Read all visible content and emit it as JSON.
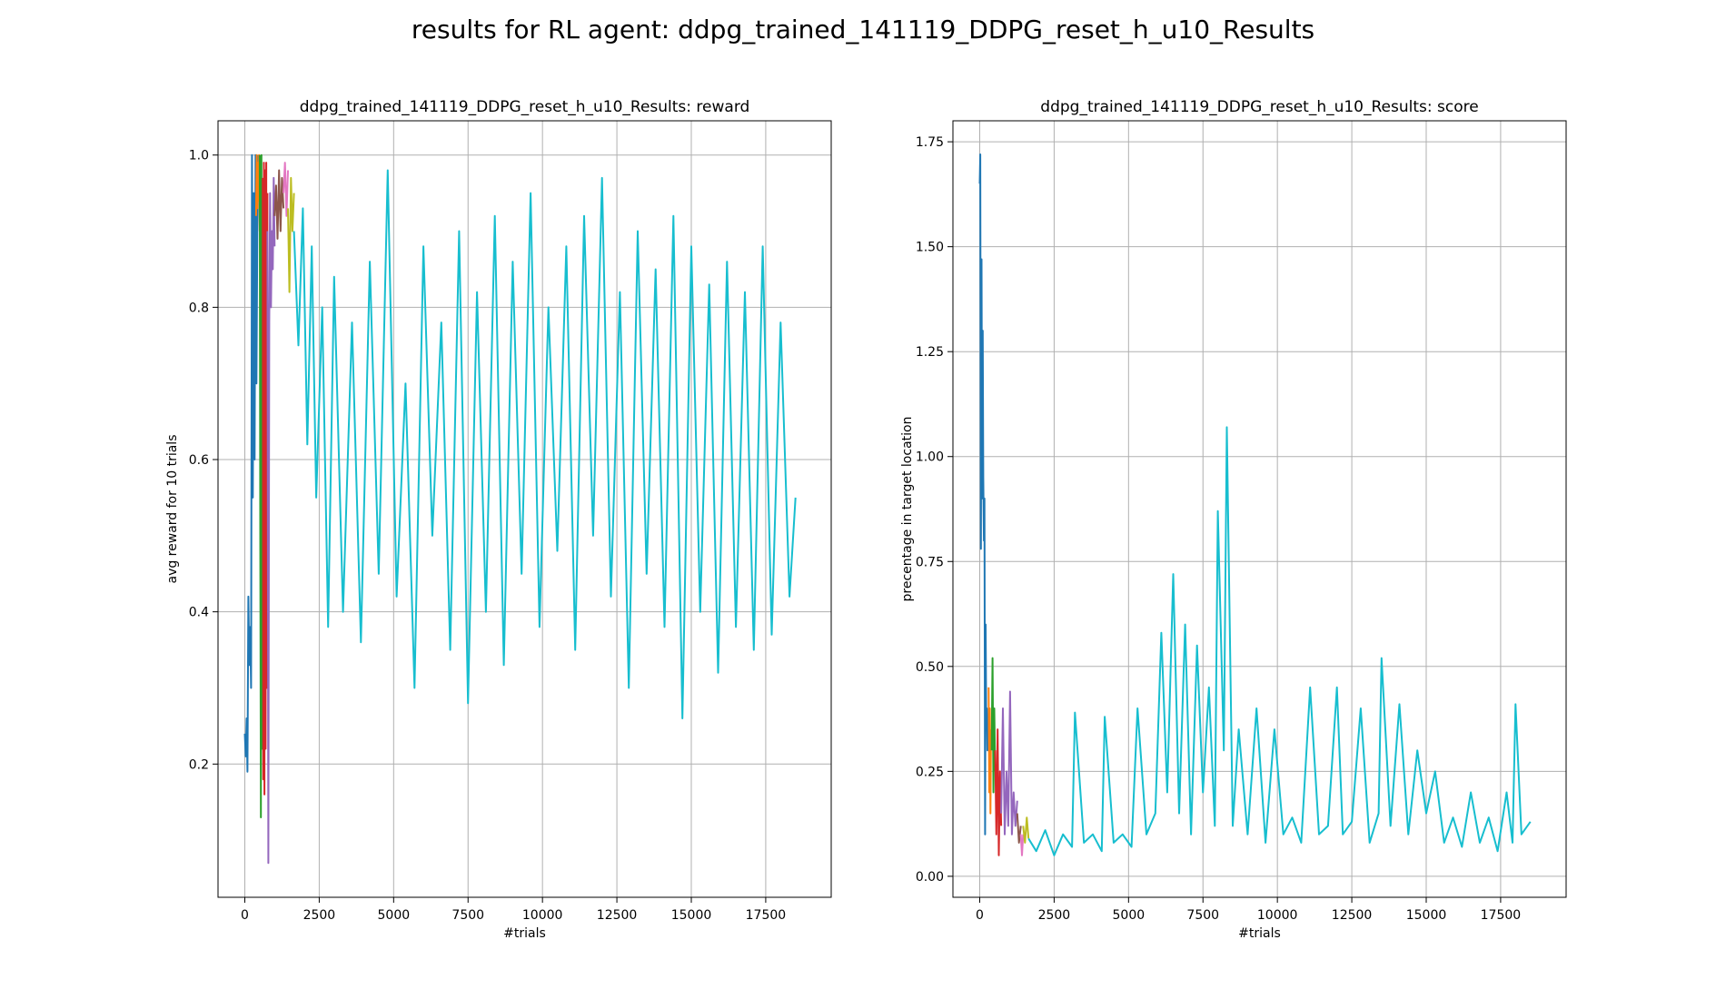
{
  "suptitle": "results for RL agent: ddpg_trained_141119_DDPG_reset_h_u10_Results",
  "chart_data": [
    {
      "type": "line",
      "title": "ddpg_trained_141119_DDPG_reset_h_u10_Results: reward",
      "xlabel": "#trials",
      "ylabel": "avg reward for 10 trials",
      "xlim": [
        -900,
        19700
      ],
      "ylim": [
        0.025,
        1.045
      ],
      "xticks": [
        0,
        2500,
        5000,
        7500,
        10000,
        12500,
        15000,
        17500
      ],
      "xtick_labels": [
        "0",
        "2500",
        "5000",
        "7500",
        "10000",
        "12500",
        "15000",
        "17500"
      ],
      "yticks": [
        0.2,
        0.4,
        0.6,
        0.8,
        1.0
      ],
      "ytick_labels": [
        "0.2",
        "0.4",
        "0.6",
        "0.8",
        "1.0"
      ],
      "grid": true,
      "series": [
        {
          "color": "#1f77b4",
          "x": [
            0,
            30,
            60,
            90,
            120,
            150,
            180,
            210,
            240,
            270,
            300,
            330,
            360,
            390,
            420,
            450
          ],
          "y": [
            0.24,
            0.21,
            0.26,
            0.19,
            0.42,
            0.33,
            0.38,
            0.3,
            1.0,
            0.55,
            0.95,
            0.6,
            1.0,
            0.7,
            0.9,
            1.0
          ]
        },
        {
          "color": "#ff7f0e",
          "x": [
            380,
            400,
            420,
            440,
            460,
            480,
            500,
            520
          ],
          "y": [
            0.92,
            1.0,
            0.93,
            0.99,
            0.94,
            1.0,
            0.9,
            0.97
          ]
        },
        {
          "color": "#2ca02c",
          "x": [
            500,
            520,
            540,
            560,
            580,
            600
          ],
          "y": [
            1.0,
            0.5,
            0.13,
            1.0,
            0.22,
            0.95
          ]
        },
        {
          "color": "#d62728",
          "x": [
            600,
            620,
            640,
            660,
            680,
            700,
            720,
            740,
            760
          ],
          "y": [
            0.97,
            0.18,
            0.99,
            0.16,
            0.98,
            0.22,
            0.99,
            0.3,
            0.95
          ]
        },
        {
          "color": "#9467bd",
          "x": [
            760,
            790,
            820,
            850,
            880,
            910,
            940,
            970,
            1000
          ],
          "y": [
            0.9,
            0.07,
            0.78,
            0.95,
            0.8,
            0.9,
            0.85,
            0.97,
            0.88
          ]
        },
        {
          "color": "#8c564b",
          "x": [
            1000,
            1050,
            1100,
            1150,
            1200,
            1250,
            1300
          ],
          "y": [
            0.92,
            0.96,
            0.89,
            0.98,
            0.9,
            0.97,
            0.93
          ]
        },
        {
          "color": "#e377c2",
          "x": [
            1300,
            1350,
            1400,
            1450
          ],
          "y": [
            0.95,
            0.99,
            0.92,
            0.98
          ]
        },
        {
          "color": "#bcbd22",
          "x": [
            1450,
            1500,
            1550,
            1600,
            1650
          ],
          "y": [
            0.93,
            0.82,
            0.97,
            0.9,
            0.95
          ]
        },
        {
          "color": "#17becf",
          "x": [
            1650,
            1800,
            1950,
            2100,
            2250,
            2400,
            2600,
            2800,
            3000,
            3300,
            3600,
            3900,
            4200,
            4500,
            4800,
            5100,
            5400,
            5700,
            6000,
            6300,
            6600,
            6900,
            7200,
            7500,
            7800,
            8100,
            8400,
            8700,
            9000,
            9300,
            9600,
            9900,
            10200,
            10500,
            10800,
            11100,
            11400,
            11700,
            12000,
            12300,
            12600,
            12900,
            13200,
            13500,
            13800,
            14100,
            14400,
            14700,
            15000,
            15300,
            15600,
            15900,
            16200,
            16500,
            16800,
            17100,
            17400,
            17700,
            18000,
            18300,
            18500
          ],
          "y": [
            0.9,
            0.75,
            0.93,
            0.62,
            0.88,
            0.55,
            0.8,
            0.38,
            0.84,
            0.4,
            0.78,
            0.36,
            0.86,
            0.45,
            0.98,
            0.42,
            0.7,
            0.3,
            0.88,
            0.5,
            0.78,
            0.35,
            0.9,
            0.28,
            0.82,
            0.4,
            0.92,
            0.33,
            0.86,
            0.45,
            0.95,
            0.38,
            0.8,
            0.48,
            0.88,
            0.35,
            0.92,
            0.5,
            0.97,
            0.42,
            0.82,
            0.3,
            0.9,
            0.45,
            0.85,
            0.38,
            0.92,
            0.26,
            0.88,
            0.4,
            0.83,
            0.32,
            0.86,
            0.38,
            0.82,
            0.35,
            0.88,
            0.37,
            0.78,
            0.42,
            0.55
          ]
        }
      ]
    },
    {
      "type": "line",
      "title": "ddpg_trained_141119_DDPG_reset_h_u10_Results: score",
      "xlabel": "#trials",
      "ylabel": "precentage in target location",
      "xlim": [
        -900,
        19700
      ],
      "ylim": [
        -0.05,
        1.8
      ],
      "xticks": [
        0,
        2500,
        5000,
        7500,
        10000,
        12500,
        15000,
        17500
      ],
      "xtick_labels": [
        "0",
        "2500",
        "5000",
        "7500",
        "10000",
        "12500",
        "15000",
        "17500"
      ],
      "yticks": [
        0.0,
        0.25,
        0.5,
        0.75,
        1.0,
        1.25,
        1.5,
        1.75
      ],
      "ytick_labels": [
        "0.00",
        "0.25",
        "0.50",
        "0.75",
        "1.00",
        "1.25",
        "1.50",
        "1.75"
      ],
      "grid": true,
      "series": [
        {
          "color": "#1f77b4",
          "x": [
            0,
            20,
            40,
            60,
            80,
            100,
            120,
            140,
            160,
            180,
            200,
            220,
            240,
            260,
            280
          ],
          "y": [
            1.65,
            1.72,
            0.78,
            1.47,
            0.9,
            1.3,
            0.95,
            0.8,
            0.9,
            0.1,
            0.6,
            0.35,
            0.4,
            0.3,
            0.38
          ]
        },
        {
          "color": "#ff7f0e",
          "x": [
            300,
            320,
            340,
            360,
            380
          ],
          "y": [
            0.45,
            0.2,
            0.4,
            0.15,
            0.35
          ]
        },
        {
          "color": "#2ca02c",
          "x": [
            400,
            430,
            460,
            490,
            520
          ],
          "y": [
            0.3,
            0.52,
            0.2,
            0.4,
            0.25
          ]
        },
        {
          "color": "#d62728",
          "x": [
            520,
            560,
            600,
            640,
            680,
            720
          ],
          "y": [
            0.3,
            0.1,
            0.35,
            0.05,
            0.25,
            0.12
          ]
        },
        {
          "color": "#9467bd",
          "x": [
            720,
            780,
            840,
            900,
            960,
            1020,
            1080,
            1140,
            1200,
            1260
          ],
          "y": [
            0.15,
            0.4,
            0.1,
            0.25,
            0.12,
            0.44,
            0.1,
            0.2,
            0.12,
            0.18
          ]
        },
        {
          "color": "#8c564b",
          "x": [
            1260,
            1320,
            1380
          ],
          "y": [
            0.15,
            0.08,
            0.12
          ]
        },
        {
          "color": "#e377c2",
          "x": [
            1380,
            1420,
            1460
          ],
          "y": [
            0.1,
            0.05,
            0.1
          ]
        },
        {
          "color": "#bcbd22",
          "x": [
            1460,
            1520,
            1580,
            1640
          ],
          "y": [
            0.12,
            0.08,
            0.14,
            0.09
          ]
        },
        {
          "color": "#17becf",
          "x": [
            1640,
            1900,
            2200,
            2500,
            2800,
            3100,
            3200,
            3500,
            3800,
            4100,
            4200,
            4500,
            4800,
            5100,
            5300,
            5600,
            5900,
            6100,
            6300,
            6500,
            6700,
            6900,
            7100,
            7300,
            7500,
            7700,
            7900,
            8000,
            8200,
            8300,
            8500,
            8700,
            9000,
            9300,
            9600,
            9900,
            10200,
            10500,
            10800,
            11100,
            11400,
            11700,
            12000,
            12200,
            12500,
            12800,
            13100,
            13400,
            13500,
            13800,
            14100,
            14400,
            14700,
            15000,
            15300,
            15600,
            15900,
            16200,
            16500,
            16800,
            17100,
            17400,
            17700,
            17900,
            18000,
            18200,
            18500
          ],
          "y": [
            0.09,
            0.06,
            0.11,
            0.05,
            0.1,
            0.07,
            0.39,
            0.08,
            0.1,
            0.06,
            0.38,
            0.08,
            0.1,
            0.07,
            0.4,
            0.1,
            0.15,
            0.58,
            0.2,
            0.72,
            0.15,
            0.6,
            0.1,
            0.55,
            0.2,
            0.45,
            0.12,
            0.87,
            0.3,
            1.07,
            0.12,
            0.35,
            0.1,
            0.4,
            0.08,
            0.35,
            0.1,
            0.14,
            0.08,
            0.45,
            0.1,
            0.12,
            0.45,
            0.1,
            0.13,
            0.4,
            0.08,
            0.15,
            0.52,
            0.12,
            0.41,
            0.1,
            0.3,
            0.15,
            0.25,
            0.08,
            0.14,
            0.07,
            0.2,
            0.08,
            0.14,
            0.06,
            0.2,
            0.08,
            0.41,
            0.1,
            0.13
          ]
        }
      ]
    }
  ]
}
